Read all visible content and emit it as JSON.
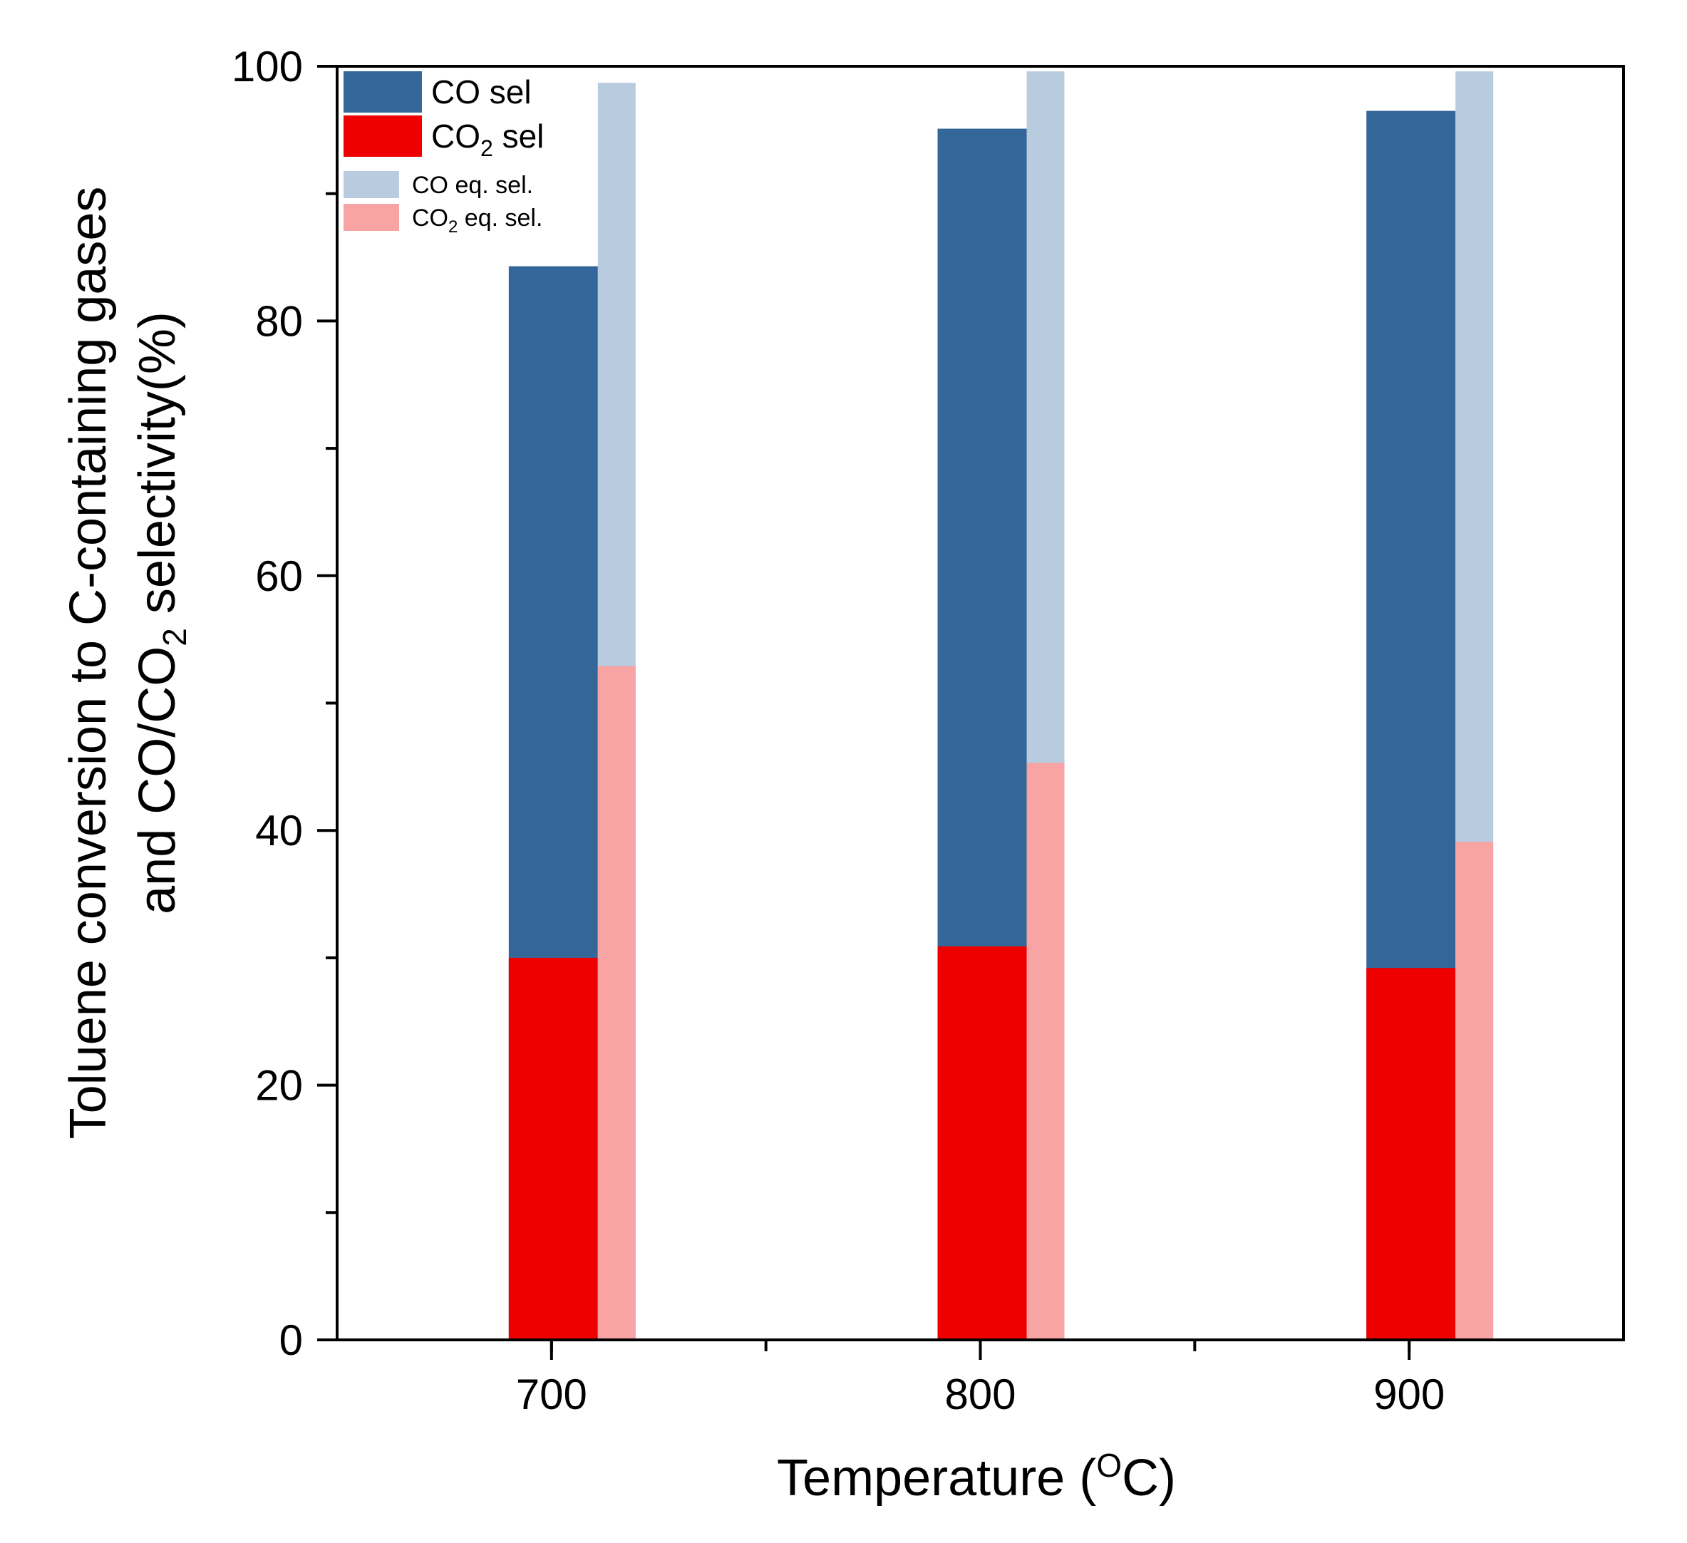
{
  "chart_data": {
    "type": "bar",
    "stacked": true,
    "categories": [
      "700",
      "800",
      "900"
    ],
    "xlabel": {
      "main": "Temperature (",
      "sup": "O",
      "tail": "C)"
    },
    "ylabel": {
      "line1": "Toluene conversion to C-containing gases",
      "line2_pre": "and CO/CO",
      "line2_sub": "2",
      "line2_post": " selectivity(%)"
    },
    "ylim": [
      0,
      100
    ],
    "yticks": [
      0,
      20,
      40,
      60,
      80,
      100
    ],
    "yticks_minor": [
      10,
      30,
      50,
      70,
      90
    ],
    "series": [
      {
        "group": "measured",
        "name": "CO2 sel",
        "role": "bottom",
        "color": "#ee0000",
        "values": [
          30.0,
          30.9,
          29.2
        ]
      },
      {
        "group": "measured",
        "name": "CO sel",
        "role": "total",
        "color": "#336699",
        "values": [
          84.3,
          95.1,
          96.5
        ]
      },
      {
        "group": "equilibrium",
        "name": "CO2 eq. sel.",
        "role": "bottom",
        "color": "#f8a4a4",
        "values": [
          52.9,
          45.3,
          39.1
        ]
      },
      {
        "group": "equilibrium",
        "name": "CO eq. sel.",
        "role": "total",
        "color": "#b9cbde",
        "values": [
          98.7,
          99.6,
          99.6
        ]
      }
    ],
    "legend": {
      "position": "top-left",
      "items": [
        {
          "pre": "CO",
          "sub": "",
          "post": " sel",
          "color": "#336699",
          "size": "big"
        },
        {
          "pre": "CO",
          "sub": "2",
          "post": " sel",
          "color": "#ee0000",
          "size": "big"
        },
        {
          "pre": "CO",
          "sub": "",
          "post": " eq. sel.",
          "color": "#b9cbde",
          "size": "small"
        },
        {
          "pre": "CO",
          "sub": "2",
          "post": " eq. sel.",
          "color": "#f8a4a4",
          "size": "small"
        }
      ]
    }
  }
}
